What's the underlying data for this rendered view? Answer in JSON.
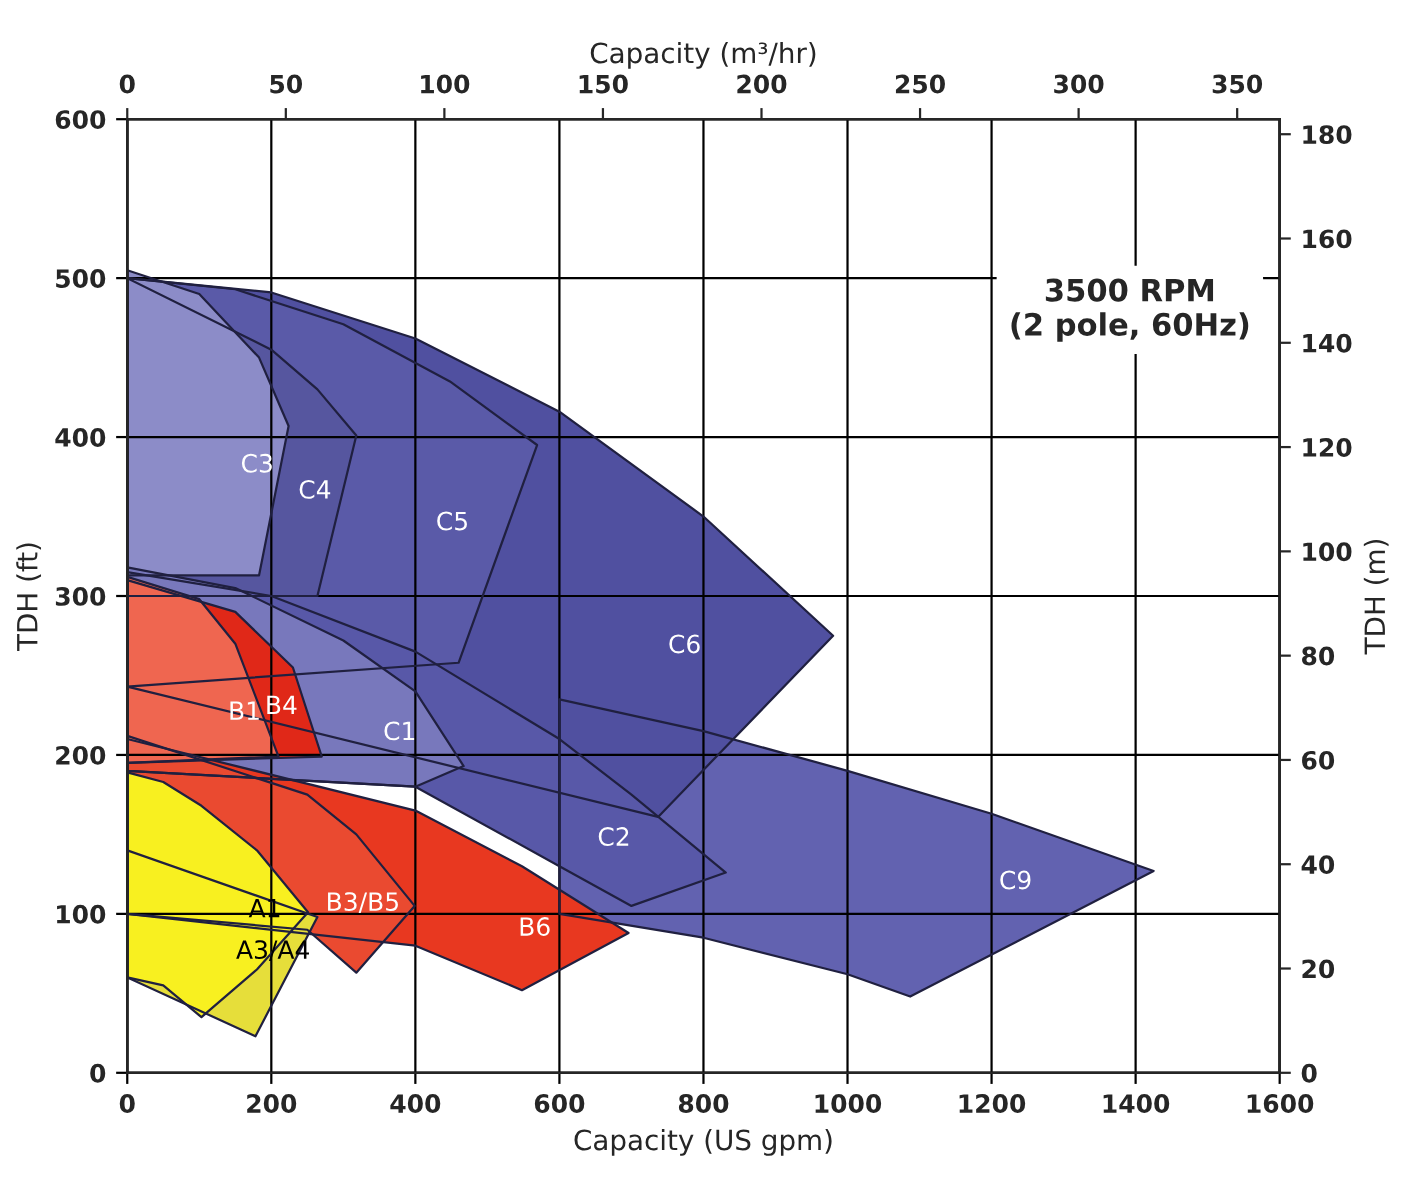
{
  "chart_data": {
    "type": "area",
    "xlabel": "Capacity (US gpm)",
    "ylabel": "TDH (ft)",
    "x2label": "Capacity (m³/hr)",
    "y2label": "TDH (m)",
    "xlim": [
      0,
      1600
    ],
    "xticks": [
      0,
      200,
      400,
      600,
      800,
      1000,
      1200,
      1400,
      1600
    ],
    "ylim": [
      0,
      600
    ],
    "yticks": [
      0,
      100,
      200,
      300,
      400,
      500,
      600
    ],
    "x2lim": [
      0,
      363.4
    ],
    "x2ticks": [
      0,
      50,
      100,
      150,
      200,
      250,
      300,
      350
    ],
    "y2lim": [
      0,
      182.88
    ],
    "y2ticks": [
      0,
      20,
      40,
      60,
      80,
      100,
      120,
      140,
      160,
      180
    ],
    "grid": true,
    "legend": false,
    "marker": "none",
    "annotations": [
      "3500 RPM\n(2 pole, 60Hz)"
    ],
    "series": [
      {
        "name": "C9",
        "color": "#6262b0",
        "x": [
          600,
          800,
          1000,
          1200,
          1425,
          1087,
          1000,
          800,
          600
        ],
        "values": [
          235,
          215,
          190,
          163,
          127,
          48,
          62,
          85,
          100
        ]
      },
      {
        "name": "C6",
        "color": "#5050a0",
        "x": [
          0,
          200,
          400,
          600,
          800,
          980,
          737,
          448,
          0
        ],
        "values": [
          500,
          491,
          462,
          416,
          350,
          275,
          161,
          null,
          243
        ]
      },
      {
        "name": "C5",
        "color": "#5a5aa8",
        "x": [
          0,
          150,
          300,
          448,
          569,
          460,
          0
        ],
        "values": [
          500,
          493,
          471,
          435,
          395,
          258,
          243
        ]
      },
      {
        "name": "C4",
        "color": "#56569f",
        "x": [
          0,
          200,
          264,
          318,
          264,
          0
        ],
        "values": [
          500,
          455,
          430,
          401,
          300,
          300
        ]
      },
      {
        "name": "C3",
        "color": "#8c8cc8",
        "x": [
          0,
          100,
          183,
          224,
          183,
          0
        ],
        "values": [
          505,
          490,
          450,
          407,
          313,
          313
        ]
      },
      {
        "name": "C2",
        "color": "#5858a8",
        "x": [
          0,
          200,
          400,
          600,
          700,
          831,
          700,
          600,
          400,
          0
        ],
        "values": [
          315,
          300,
          265,
          210,
          175,
          126,
          105,
          130,
          180,
          190
        ]
      },
      {
        "name": "C1",
        "color": "#7878bc",
        "x": [
          0,
          150,
          300,
          400,
          467,
          400,
          0
        ],
        "values": [
          318,
          305,
          272,
          240,
          193,
          180,
          190
        ]
      },
      {
        "name": "B6",
        "color": "#e83820",
        "x": [
          0,
          400,
          548,
          696,
          548,
          400,
          0
        ],
        "values": [
          210,
          165,
          130,
          88,
          52,
          80,
          100
        ]
      },
      {
        "name": "B3/B5",
        "color": "#ea4a30",
        "x": [
          0,
          250,
          318,
          399,
          318,
          250,
          0
        ],
        "values": [
          212,
          175,
          150,
          105,
          63,
          90,
          100
        ]
      },
      {
        "name": "B4",
        "color": "#e02818",
        "x": [
          0,
          150,
          230,
          270,
          0
        ],
        "values": [
          310,
          290,
          255,
          199,
          195
        ]
      },
      {
        "name": "B1",
        "color": "#ef6650",
        "x": [
          0,
          100,
          150,
          210,
          0
        ],
        "values": [
          312,
          298,
          270,
          199,
          195
        ]
      },
      {
        "name": "A3/A4",
        "color": "#e6de3a",
        "x": [
          0,
          264,
          178,
          100,
          0
        ],
        "values": [
          140,
          98,
          23,
          null,
          60
        ]
      },
      {
        "name": "A1",
        "color": "#f8f020",
        "x": [
          0,
          50,
          103,
          180,
          251,
          180,
          103,
          50,
          0
        ],
        "values": [
          189,
          183,
          168,
          140,
          101,
          65,
          35,
          55,
          60
        ]
      }
    ]
  }
}
